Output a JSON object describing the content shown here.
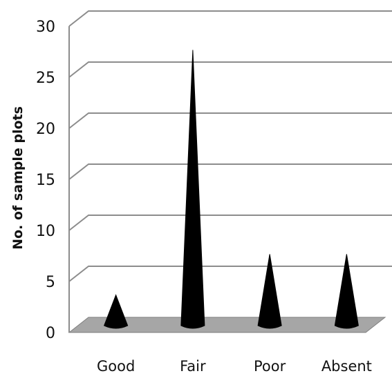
{
  "chart_data": {
    "type": "bar",
    "bar_shape": "cone",
    "view": "3d",
    "categories": [
      "Good",
      "Fair",
      "Poor",
      "Absent"
    ],
    "values": [
      3,
      27,
      7,
      7
    ],
    "ylabel": "No. of sample plots",
    "xlabel": "",
    "ylim": [
      0,
      30
    ],
    "yticks": [
      0,
      5,
      10,
      15,
      20,
      25,
      30
    ],
    "grid": true,
    "colors": {
      "bars": "#000000",
      "floor": "#a6a6a6",
      "gridlines": "#8c8c8c",
      "axis": "#8c8c8c"
    }
  }
}
